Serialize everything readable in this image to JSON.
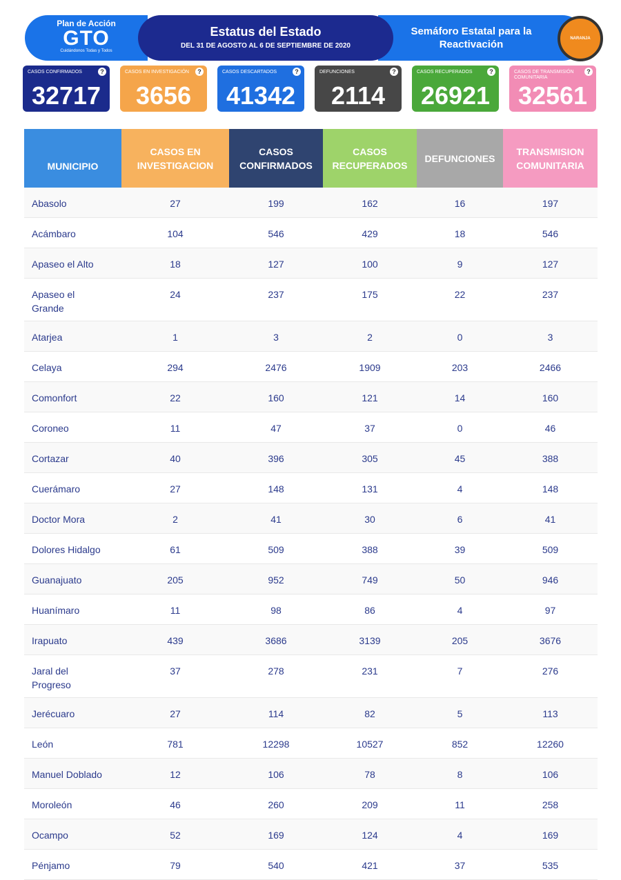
{
  "header": {
    "logo_top": "Plan de Acción",
    "logo_main": "GTO",
    "logo_slogan": "Cuidándonos Todas y Todos",
    "title": "Estatus del Estado",
    "subtitle": "DEL 31 DE AGOSTO AL 6 DE SEPTIEMBRE DE 2020",
    "semaforo": "Semáforo Estatal para la Reactivación",
    "badge": "NARANJA"
  },
  "help_icon": "?",
  "cards": [
    {
      "label": "CASOS CONFIRMADOS",
      "value": 32717,
      "color": "#1b2b8c"
    },
    {
      "label": "CASOS EN INVESTIGACIÓN",
      "value": 3656,
      "color": "#f5a54a"
    },
    {
      "label": "CASOS DESCARTADOS",
      "value": 41342,
      "color": "#1f6fe0"
    },
    {
      "label": "DEFUNCIONES",
      "value": 2114,
      "color": "#474747"
    },
    {
      "label": "CASOS RECUPERADOS",
      "value": 26921,
      "color": "#4aa83a"
    },
    {
      "label": "CASOS DE TRANSMISIÓN COMUNITARIA",
      "value": 32561,
      "color": "#f28cb5"
    }
  ],
  "table": {
    "headers": [
      "MUNICIPIO",
      "CASOS EN INVESTIGACION",
      "CASOS CONFIRMADOS",
      "CASOS RECUPERADOS",
      "DEFUNCIONES",
      "TRANSMISION COMUNITARIA"
    ],
    "header_colors": [
      "#3a8de0",
      "#f7b25e",
      "#2f4470",
      "#9ed36a",
      "#a8a8a8",
      "#f59bc1"
    ],
    "rows": [
      [
        "Abasolo",
        27,
        199,
        162,
        16,
        197
      ],
      [
        "Acámbaro",
        104,
        546,
        429,
        18,
        546
      ],
      [
        "Apaseo el Alto",
        18,
        127,
        100,
        9,
        127
      ],
      [
        "Apaseo el Grande",
        24,
        237,
        175,
        22,
        237
      ],
      [
        "Atarjea",
        1,
        3,
        2,
        0,
        3
      ],
      [
        "Celaya",
        294,
        2476,
        1909,
        203,
        2466
      ],
      [
        "Comonfort",
        22,
        160,
        121,
        14,
        160
      ],
      [
        "Coroneo",
        11,
        47,
        37,
        0,
        46
      ],
      [
        "Cortazar",
        40,
        396,
        305,
        45,
        388
      ],
      [
        "Cuerámaro",
        27,
        148,
        131,
        4,
        148
      ],
      [
        "Doctor Mora",
        2,
        41,
        30,
        6,
        41
      ],
      [
        "Dolores Hidalgo",
        61,
        509,
        388,
        39,
        509
      ],
      [
        "Guanajuato",
        205,
        952,
        749,
        50,
        946
      ],
      [
        "Huanímaro",
        11,
        98,
        86,
        4,
        97
      ],
      [
        "Irapuato",
        439,
        3686,
        3139,
        205,
        3676
      ],
      [
        "Jaral del Progreso",
        37,
        278,
        231,
        7,
        276
      ],
      [
        "Jerécuaro",
        27,
        114,
        82,
        5,
        113
      ],
      [
        "León",
        781,
        12298,
        10527,
        852,
        12260
      ],
      [
        "Manuel Doblado",
        12,
        106,
        78,
        8,
        106
      ],
      [
        "Moroleón",
        46,
        260,
        209,
        11,
        258
      ],
      [
        "Ocampo",
        52,
        169,
        124,
        4,
        169
      ],
      [
        "Pénjamo",
        79,
        540,
        421,
        37,
        535
      ]
    ]
  }
}
